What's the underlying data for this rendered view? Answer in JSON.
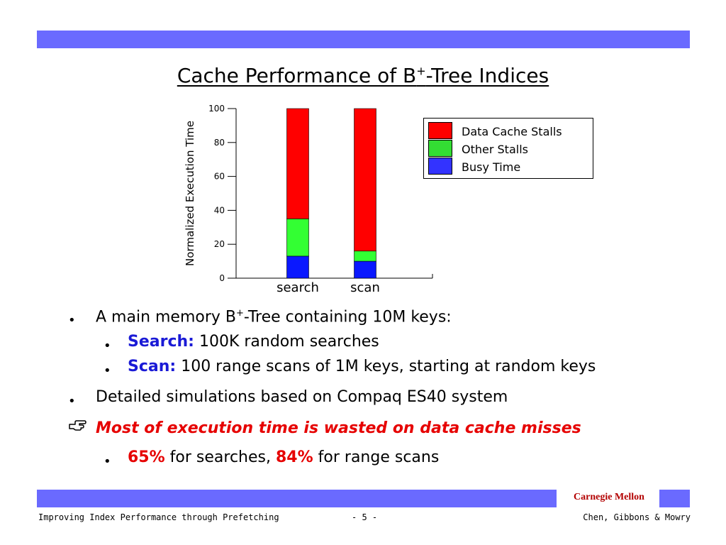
{
  "slide": {
    "title": "Cache Performance of B",
    "title_sup": "+",
    "title_suffix": "-Tree Indices",
    "brand": "Carnegie Mellon",
    "footer_left": "Improving Index Performance through Prefetching",
    "footer_center": "- 5 -",
    "footer_right": "Chen, Gibbons & Mowry"
  },
  "colors": {
    "band": "#6a6aff",
    "data_cache_stalls": "#ff0000",
    "other_stalls": "#33ff33",
    "busy_time": "#0a18ff",
    "keyword": "#1a1ad6",
    "emphasis": "#e60000"
  },
  "chart_data": {
    "type": "bar",
    "stacked": true,
    "ylabel": "Normalized Execution Time",
    "ylim": [
      0,
      100
    ],
    "yticks": [
      0,
      20,
      40,
      60,
      80,
      100
    ],
    "categories": [
      "search",
      "scan"
    ],
    "series": [
      {
        "name": "Busy Time",
        "values": [
          13,
          10
        ],
        "color": "#0a18ff"
      },
      {
        "name": "Other Stalls",
        "values": [
          22,
          6
        ],
        "color": "#33ff33"
      },
      {
        "name": "Data Cache Stalls",
        "values": [
          65,
          84
        ],
        "color": "#ff0000"
      }
    ],
    "legend_order": [
      "Data Cache Stalls",
      "Other Stalls",
      "Busy Time"
    ],
    "legend_position": "right"
  },
  "bullets": {
    "b1": {
      "pre": "A main memory B",
      "sup": "+",
      "post": "-Tree containing 10M keys:"
    },
    "b1a": {
      "key": "Search:",
      "text": " 100K random searches"
    },
    "b1b": {
      "key": "Scan:",
      "text": " 100 range scans of 1M keys, starting at random keys"
    },
    "b2": {
      "text": "Detailed simulations based on Compaq ES40 system"
    },
    "b3": {
      "text": "Most of execution time is wasted on data cache misses"
    },
    "b3a": {
      "v1": "65%",
      "t1": " for searches, ",
      "v2": "84%",
      "t2": " for range scans"
    },
    "bullet_glyph": "•",
    "hand_icon": "pointing-hand"
  }
}
